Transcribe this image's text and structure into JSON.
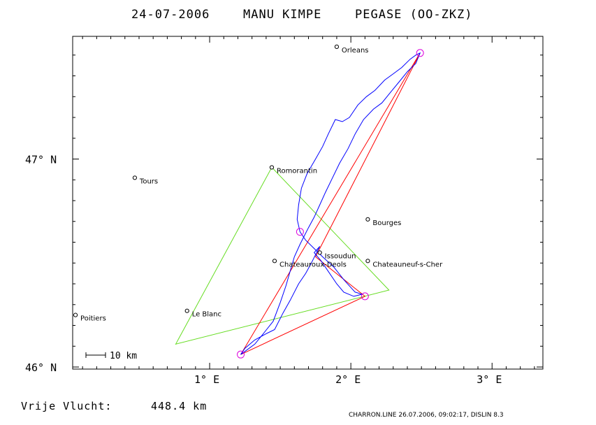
{
  "title": {
    "date": "24-07-2006",
    "pilot": "MANU KIMPE",
    "glider": "PEGASE (OO-ZKZ)"
  },
  "axes": {
    "x_ticks": [
      {
        "value": 1,
        "label": "1° E"
      },
      {
        "value": 2,
        "label": "2° E"
      },
      {
        "value": 3,
        "label": "3° E"
      }
    ],
    "y_ticks": [
      {
        "value": 47,
        "label": "47° N"
      },
      {
        "value": 46,
        "label": "46° N"
      }
    ],
    "lon_range": [
      0.03,
      3.36
    ],
    "lat_range": [
      45.99,
      47.59
    ]
  },
  "cities": [
    {
      "name": "Orleans",
      "lon": 1.9,
      "lat": 47.54
    },
    {
      "name": "Romorantin",
      "lon": 1.44,
      "lat": 46.96
    },
    {
      "name": "Tours",
      "lon": 0.47,
      "lat": 46.91
    },
    {
      "name": "Bourges",
      "lon": 2.12,
      "lat": 46.71
    },
    {
      "name": "Issoudun",
      "lon": 1.78,
      "lat": 46.55
    },
    {
      "name": "Chateauroux-Deols",
      "lon": 1.46,
      "lat": 46.51
    },
    {
      "name": "Chateauneuf-s-Cher",
      "lon": 2.12,
      "lat": 46.51
    },
    {
      "name": "Le Blanc",
      "lon": 0.84,
      "lat": 46.27
    },
    {
      "name": "Poitiers",
      "lon": 0.05,
      "lat": 46.25
    }
  ],
  "scale": {
    "label": "10 km"
  },
  "footer": {
    "distance_label": "Vrije Vlucht:",
    "distance_value": "448.4 km",
    "credit": "CHARRON.LINE 26.07.2006, 09:02:17, DISLIN 8.3"
  },
  "colors": {
    "track": "#0000ff",
    "optimized_route": "#ff0000",
    "declared_task": "#66dd22",
    "turnpoint": "#dd00dd",
    "frame": "#000000"
  },
  "chart_data": {
    "type": "map",
    "declared_task": [
      [
        1.44,
        46.96
      ],
      [
        2.27,
        46.37
      ],
      [
        0.76,
        46.11
      ],
      [
        1.44,
        46.96
      ]
    ],
    "optimized_route": [
      [
        1.22,
        46.06
      ],
      [
        2.49,
        47.51
      ],
      [
        1.75,
        46.53
      ],
      [
        2.1,
        46.34
      ],
      [
        1.22,
        46.06
      ]
    ],
    "turnpoints": [
      [
        1.22,
        46.06
      ],
      [
        2.49,
        47.51
      ],
      [
        1.64,
        46.65
      ],
      [
        2.1,
        46.34
      ]
    ],
    "track": [
      [
        1.22,
        46.06
      ],
      [
        1.25,
        46.09
      ],
      [
        1.32,
        46.13
      ],
      [
        1.4,
        46.16
      ],
      [
        1.46,
        46.18
      ],
      [
        1.52,
        46.26
      ],
      [
        1.57,
        46.32
      ],
      [
        1.63,
        46.4
      ],
      [
        1.68,
        46.45
      ],
      [
        1.72,
        46.5
      ],
      [
        1.75,
        46.54
      ],
      [
        1.78,
        46.58
      ],
      [
        1.74,
        46.55
      ],
      [
        1.79,
        46.51
      ],
      [
        1.84,
        46.46
      ],
      [
        1.9,
        46.4
      ],
      [
        1.95,
        46.36
      ],
      [
        2.02,
        46.34
      ],
      [
        2.08,
        46.35
      ],
      [
        2.03,
        46.36
      ],
      [
        1.95,
        46.42
      ],
      [
        1.88,
        46.48
      ],
      [
        1.8,
        46.53
      ],
      [
        1.74,
        46.57
      ],
      [
        1.68,
        46.61
      ],
      [
        1.64,
        46.65
      ],
      [
        1.62,
        46.71
      ],
      [
        1.63,
        46.78
      ],
      [
        1.65,
        46.86
      ],
      [
        1.69,
        46.93
      ],
      [
        1.75,
        47.0
      ],
      [
        1.8,
        47.06
      ],
      [
        1.84,
        47.12
      ],
      [
        1.89,
        47.19
      ],
      [
        1.94,
        47.18
      ],
      [
        1.99,
        47.2
      ],
      [
        2.05,
        47.26
      ],
      [
        2.11,
        47.3
      ],
      [
        2.17,
        47.33
      ],
      [
        2.24,
        47.38
      ],
      [
        2.3,
        47.41
      ],
      [
        2.36,
        47.44
      ],
      [
        2.42,
        47.48
      ],
      [
        2.46,
        47.5
      ],
      [
        2.49,
        47.51
      ],
      [
        2.46,
        47.46
      ],
      [
        2.4,
        47.42
      ],
      [
        2.34,
        47.37
      ],
      [
        2.28,
        47.32
      ],
      [
        2.22,
        47.27
      ],
      [
        2.16,
        47.24
      ],
      [
        2.09,
        47.19
      ],
      [
        2.03,
        47.12
      ],
      [
        1.98,
        47.05
      ],
      [
        1.92,
        46.98
      ],
      [
        1.87,
        46.91
      ],
      [
        1.82,
        46.84
      ],
      [
        1.78,
        46.78
      ],
      [
        1.74,
        46.72
      ],
      [
        1.7,
        46.67
      ],
      [
        1.67,
        46.63
      ],
      [
        1.64,
        46.59
      ],
      [
        1.6,
        46.53
      ],
      [
        1.57,
        46.46
      ],
      [
        1.54,
        46.39
      ],
      [
        1.5,
        46.31
      ],
      [
        1.45,
        46.22
      ],
      [
        1.38,
        46.16
      ],
      [
        1.32,
        46.11
      ],
      [
        1.26,
        46.08
      ],
      [
        1.22,
        46.06
      ]
    ]
  }
}
